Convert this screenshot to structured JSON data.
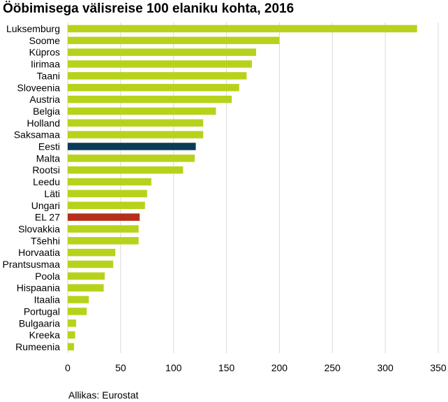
{
  "title": "Ööbimisega välisreise 100 elaniku kohta, 2016",
  "source": "Allikas: Eurostat",
  "colors": {
    "default_bar": "#b8d21c",
    "estonia_bar": "#0b3b57",
    "eu_bar": "#b5301a",
    "gridline": "#d9d9d9"
  },
  "chart_data": {
    "type": "bar",
    "orientation": "horizontal",
    "title": "Ööbimisega välisreise 100 elaniku kohta, 2016",
    "categories": [
      "Luksemburg",
      "Soome",
      "Küpros",
      "Iirimaa",
      "Taani",
      "Sloveenia",
      "Austria",
      "Belgia",
      "Holland",
      "Saksamaa",
      "Eesti",
      "Malta",
      "Rootsi",
      "Leedu",
      "Läti",
      "Ungari",
      "EL 27",
      "Slovakkia",
      "Tšehhi",
      "Horvaatia",
      "Prantsusmaa",
      "Poola",
      "Hispaania",
      "Itaalia",
      "Portugal",
      "Bulgaaria",
      "Kreeka",
      "Rumeenia"
    ],
    "values": [
      330,
      200,
      178,
      174,
      169,
      162,
      155,
      140,
      128,
      128,
      121,
      120,
      109,
      79,
      75,
      73,
      68,
      67,
      67,
      45,
      43,
      35,
      34,
      20,
      18,
      8,
      7,
      6
    ],
    "highlight": {
      "Eesti": "#0b3b57",
      "EL 27": "#b5301a"
    },
    "xlim": [
      0,
      350
    ],
    "xticks": [
      0,
      50,
      100,
      150,
      200,
      250,
      300,
      350
    ],
    "grid": "vertical",
    "legend": "none"
  }
}
